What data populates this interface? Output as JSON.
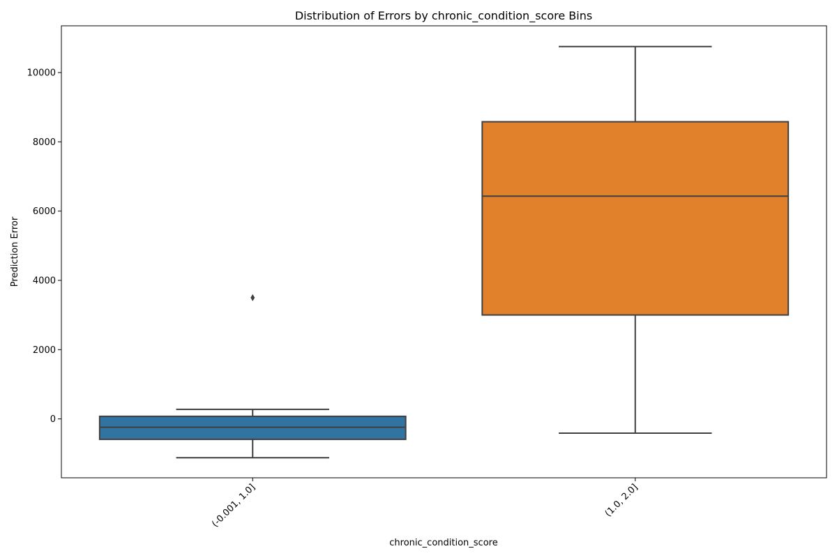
{
  "chart_data": {
    "type": "box",
    "title": "Distribution of Errors by chronic_condition_score Bins",
    "xlabel": "chronic_condition_score",
    "ylabel": "Prediction Error",
    "ylim": [
      -1700,
      11350
    ],
    "yticks": [
      0,
      2000,
      4000,
      6000,
      8000,
      10000
    ],
    "grid": false,
    "categories": [
      "(-0.001, 1.0]",
      "(1.0, 2.0]"
    ],
    "boxes": [
      {
        "category": "(-0.001, 1.0]",
        "whisker_low": -1120,
        "q1": -590,
        "median": -240,
        "q3": 75,
        "whisker_high": 275,
        "outliers": [
          3500
        ],
        "color": "#3274a1"
      },
      {
        "category": "(1.0, 2.0]",
        "whisker_low": -410,
        "q1": 3000,
        "median": 6430,
        "q3": 8580,
        "whisker_high": 10750,
        "outliers": [],
        "color": "#e1812c"
      }
    ]
  }
}
